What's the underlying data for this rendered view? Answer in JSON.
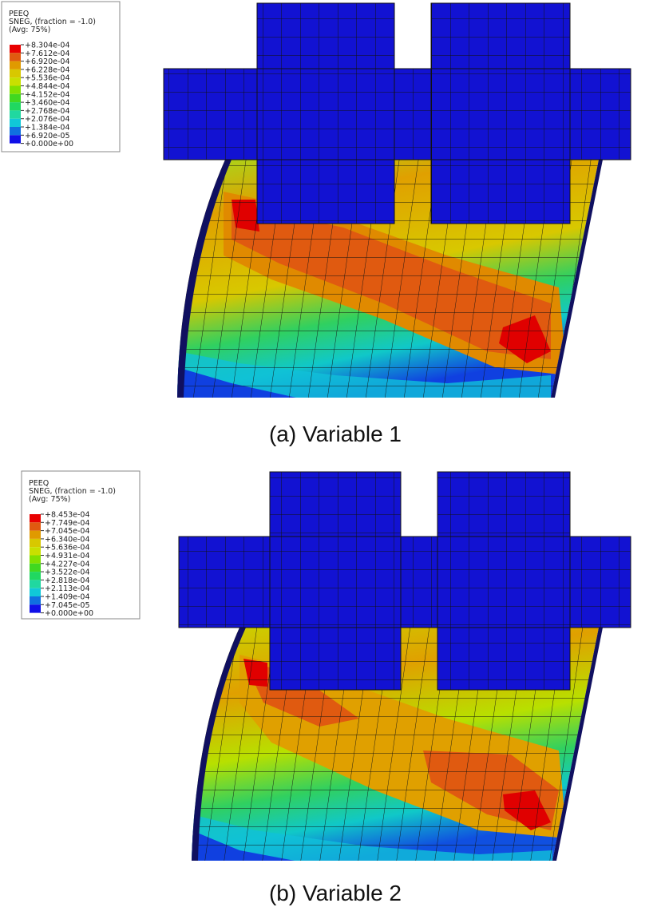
{
  "panels": [
    {
      "legend": {
        "variable": "PEEQ",
        "method": "SNEG, (fraction = -1.0)",
        "average": "(Avg: 75%)",
        "levels": [
          "+8.304e-04",
          "+7.612e-04",
          "+6.920e-04",
          "+6.228e-04",
          "+5.536e-04",
          "+4.844e-04",
          "+4.152e-04",
          "+3.460e-04",
          "+2.768e-04",
          "+2.076e-04",
          "+1.384e-04",
          "+6.920e-05",
          "+0.000e+00"
        ]
      },
      "caption": "(a) Variable 1"
    },
    {
      "legend": {
        "variable": "PEEQ",
        "method": "SNEG, (fraction = -1.0)",
        "average": "(Avg: 75%)",
        "levels": [
          "+8.453e-04",
          "+7.749e-04",
          "+7.045e-04",
          "+6.340e-04",
          "+5.636e-04",
          "+4.931e-04",
          "+4.227e-04",
          "+3.522e-04",
          "+2.818e-04",
          "+2.113e-04",
          "+1.409e-04",
          "+7.045e-05",
          "+0.000e+00"
        ]
      },
      "caption": "(b) Variable 2"
    }
  ]
}
